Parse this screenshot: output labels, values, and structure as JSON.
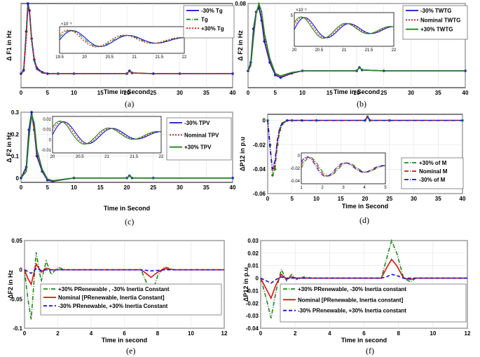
{
  "figure": {
    "captions": [
      "(a)",
      "(b)",
      "(c)",
      "(d)",
      "(e)",
      "(f)"
    ]
  },
  "colors": {
    "blue": "#1010e0",
    "green": "#1a8a1a",
    "red": "#e01010",
    "dashred": "#e01010",
    "darkgreen": "#2c7a2c"
  },
  "chart_data": [
    {
      "id": "a",
      "type": "line",
      "ylabel": "Δ F1 in Hz",
      "xlabel": "Time in Second",
      "xlim": [
        0,
        40
      ],
      "ylim": [
        -0.02,
        0.1
      ],
      "xticks": [
        "0",
        "5",
        "10",
        "15",
        "20",
        "25",
        "30",
        "35",
        "40"
      ],
      "yticks": [],
      "legend": {
        "position": "top-right",
        "entries": [
          "-30% Tg",
          "Tg",
          "+30% Tg"
        ]
      },
      "series": [
        {
          "name": "-30% Tg",
          "color": "#1010e0",
          "style": "solid-marker",
          "x": [
            0,
            0.5,
            1,
            1.3,
            1.6,
            2,
            2.5,
            3,
            4,
            5,
            7,
            10,
            20,
            20.5,
            21,
            25,
            30,
            40
          ],
          "y": [
            0,
            0.005,
            0.06,
            0.1,
            0.09,
            0.05,
            0.02,
            0.008,
            0.002,
            0.0,
            0.0,
            0.0,
            0.0,
            0.004,
            0.001,
            0.0,
            0.0,
            0.0
          ]
        },
        {
          "name": "Tg",
          "color": "#1a8a1a",
          "style": "dashdot",
          "x": [
            0,
            0.5,
            1,
            1.3,
            1.6,
            2,
            2.5,
            3,
            4,
            5,
            7,
            10,
            20,
            20.5,
            21,
            25,
            30,
            40
          ],
          "y": [
            0,
            0.004,
            0.055,
            0.097,
            0.088,
            0.048,
            0.018,
            0.006,
            0.001,
            0.0,
            0.0,
            0.0,
            0.0,
            0.004,
            0.001,
            0.0,
            0.0,
            0.0
          ]
        },
        {
          "name": "+30% Tg",
          "color": "#e01010",
          "style": "dotted",
          "x": [
            0,
            0.5,
            1,
            1.3,
            1.6,
            2,
            2.5,
            3,
            4,
            5,
            7,
            10,
            20,
            20.5,
            21,
            25,
            30,
            40
          ],
          "y": [
            0,
            0.003,
            0.05,
            0.094,
            0.086,
            0.047,
            0.017,
            0.006,
            0.001,
            0.0,
            0.0,
            0.0,
            0.0,
            0.003,
            0.001,
            0.0,
            0.0,
            0.0
          ]
        }
      ],
      "inset": {
        "xticks": [
          "19.5",
          "20",
          "20.5",
          "21",
          "21.5",
          "22"
        ],
        "exponent": "×10⁻³"
      }
    },
    {
      "id": "b",
      "type": "line",
      "ylabel": "Δ F2 in Hz",
      "xlabel": "Time in Second",
      "xlim": [
        0,
        40
      ],
      "ylim": [
        -0.02,
        0.08
      ],
      "xticks": [
        "0",
        "5",
        "10",
        "15",
        "20",
        "25",
        "30",
        "35",
        "40"
      ],
      "yticks": [
        "0.08"
      ],
      "legend": {
        "position": "top-right",
        "entries": [
          "-30% TWTG",
          "Nominal TWTG",
          "+30% TWTG"
        ]
      },
      "series": [
        {
          "name": "-30% TWTG",
          "color": "#1010e0",
          "style": "solid-marker",
          "x": [
            0,
            0.5,
            1,
            1.5,
            2,
            2.5,
            3,
            4,
            5,
            6,
            8,
            10,
            20,
            20.5,
            21,
            25,
            40
          ],
          "y": [
            0,
            0.01,
            0.05,
            0.07,
            0.075,
            0.06,
            0.035,
            0.01,
            -0.005,
            -0.008,
            -0.003,
            0.0,
            0.0,
            0.004,
            0.001,
            0.0,
            0.0
          ]
        },
        {
          "name": "Nominal TWTG",
          "color": "#e01010",
          "style": "dotted",
          "x": [
            0,
            0.5,
            1,
            1.5,
            2,
            2.5,
            3,
            4,
            5,
            6,
            8,
            10,
            20,
            20.5,
            21,
            25,
            40
          ],
          "y": [
            0,
            0.008,
            0.045,
            0.07,
            0.078,
            0.065,
            0.04,
            0.012,
            -0.004,
            -0.007,
            -0.003,
            0.0,
            0.0,
            0.004,
            0.001,
            0.0,
            0.0
          ]
        },
        {
          "name": "+30% TWTG",
          "color": "#1a8a1a",
          "style": "solid",
          "x": [
            0,
            0.5,
            1,
            1.5,
            2,
            2.5,
            3,
            4,
            5,
            6,
            8,
            10,
            20,
            20.5,
            21,
            25,
            40
          ],
          "y": [
            0,
            0.006,
            0.04,
            0.068,
            0.08,
            0.07,
            0.045,
            0.015,
            -0.003,
            -0.006,
            -0.002,
            0.0,
            0.0,
            0.004,
            0.001,
            0.0,
            0.0
          ]
        }
      ],
      "inset": {
        "xticks": [
          "20",
          "20.5",
          "21",
          "21.5",
          "22"
        ],
        "yticks": [
          "5"
        ],
        "exponent": "×10⁻³"
      }
    },
    {
      "id": "c",
      "type": "line",
      "ylabel": "Δ F2 in Hz",
      "xlabel": "Time in Second",
      "xlim": [
        0,
        40
      ],
      "ylim": [
        -0.02,
        0.3
      ],
      "xticks": [
        "0",
        "5",
        "10",
        "15",
        "20",
        "25",
        "30",
        "35",
        "40"
      ],
      "yticks": [
        "0",
        "0.1",
        "0.2",
        "0.3"
      ],
      "legend": {
        "position": "right",
        "entries": [
          "-30% TPV",
          "Nominal TPV",
          "+30% TPV"
        ]
      },
      "series": [
        {
          "name": "-30% TPV",
          "color": "#1010e0",
          "style": "solid-marker",
          "x": [
            0,
            1,
            1.5,
            2,
            2.5,
            3,
            4,
            5,
            6,
            10,
            20,
            20.5,
            21,
            25,
            40
          ],
          "y": [
            0,
            0.05,
            0.22,
            0.3,
            0.22,
            0.1,
            0.03,
            -0.01,
            -0.015,
            0.0,
            0.0,
            0.01,
            0.0,
            0.0,
            0.0
          ]
        },
        {
          "name": "Nominal TPV",
          "color": "#e01010",
          "style": "dotted",
          "x": [
            0,
            1,
            1.5,
            2,
            2.5,
            3,
            4,
            5,
            6,
            10,
            20,
            20.5,
            21,
            25,
            40
          ],
          "y": [
            0,
            0.04,
            0.2,
            0.28,
            0.22,
            0.11,
            0.035,
            -0.008,
            -0.014,
            0.0,
            0.0,
            0.01,
            0.0,
            0.0,
            0.0
          ]
        },
        {
          "name": "+30% TPV",
          "color": "#1a8a1a",
          "style": "solid",
          "x": [
            0,
            1,
            1.5,
            2,
            2.5,
            3,
            4,
            5,
            6,
            10,
            20,
            20.5,
            21,
            25,
            40
          ],
          "y": [
            0,
            0.03,
            0.18,
            0.29,
            0.25,
            0.13,
            0.04,
            -0.005,
            -0.012,
            0.0,
            0.0,
            0.01,
            0.0,
            0.0,
            0.0
          ]
        }
      ],
      "inset": {
        "xticks": [
          "20",
          "20.5",
          "21",
          "21.5",
          "22"
        ],
        "yticks": [
          "0.02",
          "0.01",
          "0",
          "-0.01"
        ]
      }
    },
    {
      "id": "d",
      "type": "line",
      "ylabel": "ΔP12 in p.u",
      "xlabel": "Time in Second",
      "xlim": [
        0,
        40
      ],
      "ylim": [
        -0.06,
        0.005
      ],
      "xticks": [
        "0",
        "5",
        "10",
        "15",
        "20",
        "25",
        "30",
        "35",
        "40"
      ],
      "yticks": [
        "0",
        "-0.02",
        "-0.04",
        "-0.06"
      ],
      "legend": {
        "position": "bottom-right",
        "entries": [
          "+30% of M",
          "Nominal M",
          "-30% of M"
        ]
      },
      "series": [
        {
          "name": "+30% of M",
          "color": "#1a8a1a",
          "style": "dashdot-marker",
          "x": [
            0,
            0.5,
            1,
            1.5,
            2,
            2.5,
            3,
            4,
            5,
            7,
            10,
            20,
            20.5,
            21,
            25,
            40
          ],
          "y": [
            0,
            -0.02,
            -0.045,
            -0.04,
            -0.02,
            -0.008,
            -0.003,
            0.0,
            0.0,
            0.0,
            0.0,
            0.0,
            0.003,
            0.0,
            0.0,
            0.0
          ]
        },
        {
          "name": "Nominal M",
          "color": "#e01010",
          "style": "dashdot",
          "x": [
            0,
            0.5,
            1,
            1.5,
            2,
            2.5,
            3,
            4,
            5,
            7,
            10,
            20,
            20.5,
            21,
            25,
            40
          ],
          "y": [
            0,
            -0.022,
            -0.042,
            -0.036,
            -0.018,
            -0.007,
            -0.002,
            0.0,
            0.0,
            0.0,
            0.0,
            0.0,
            0.003,
            0.0,
            0.0,
            0.0
          ]
        },
        {
          "name": "-30% of M",
          "color": "#1010e0",
          "style": "dashdot",
          "x": [
            0,
            0.5,
            1,
            1.5,
            2,
            2.5,
            3,
            4,
            5,
            7,
            10,
            20,
            20.5,
            21,
            25,
            40
          ],
          "y": [
            0,
            -0.024,
            -0.04,
            -0.033,
            -0.016,
            -0.006,
            -0.002,
            0.0,
            0.0,
            0.0,
            0.0,
            0.0,
            0.003,
            0.0,
            0.0,
            0.0
          ]
        }
      ],
      "inset": {
        "xticks": [
          "1",
          "2",
          "3",
          "4",
          "5"
        ],
        "yticks": [
          "0",
          "-0.02",
          "-0.04"
        ]
      }
    },
    {
      "id": "e",
      "type": "line",
      "ylabel": "ΔF2 in Hz",
      "xlabel": "Time in second",
      "xlim": [
        0,
        12
      ],
      "ylim": [
        -0.1,
        0.05
      ],
      "xticks": [
        "0",
        "2",
        "4",
        "6",
        "8",
        "10",
        "12"
      ],
      "yticks": [
        "0.05",
        "0",
        "-0.05",
        "-0.1"
      ],
      "legend": {
        "position": "bottom",
        "entries": [
          "+30% PRenewable , -30% Inertia Constant",
          "Nominal [PRenewable, Inertia Constant]",
          "-30% PRenewable, +30% Inertia Constant"
        ]
      },
      "series": [
        {
          "name": "+30% PRenewable , -30% Inertia Constant",
          "color": "#1a8a1a",
          "style": "dashdot",
          "x": [
            0,
            0.2,
            0.4,
            0.7,
            1.0,
            1.3,
            1.6,
            2.0,
            2.5,
            3,
            4,
            6,
            7,
            7.3,
            7.6,
            8,
            8.4,
            9,
            10,
            12
          ],
          "y": [
            0,
            -0.05,
            -0.085,
            0.03,
            -0.02,
            0.015,
            -0.008,
            0.004,
            0,
            0,
            0,
            0,
            0,
            -0.02,
            -0.047,
            -0.01,
            0.005,
            0,
            0,
            0
          ]
        },
        {
          "name": "Nominal [PRenewable, Inertia Constant]",
          "color": "#e01010",
          "style": "solid",
          "x": [
            0,
            0.2,
            0.4,
            0.7,
            1.0,
            1.3,
            1.6,
            2.0,
            2.5,
            3,
            4,
            6,
            7,
            7.3,
            7.6,
            8,
            8.4,
            9,
            10,
            12
          ],
          "y": [
            0,
            -0.015,
            -0.025,
            0.01,
            -0.004,
            0.003,
            0,
            0,
            0,
            0,
            0,
            0,
            0,
            -0.006,
            -0.013,
            -0.004,
            0.002,
            0,
            0,
            0
          ]
        },
        {
          "name": "-30% PRenewable, +30% Inertia Constant",
          "color": "#1010e0",
          "style": "dashed",
          "x": [
            0,
            0.2,
            0.4,
            0.7,
            1.0,
            1.3,
            1.6,
            2.0,
            2.5,
            3,
            4,
            6,
            7,
            7.3,
            7.6,
            8,
            8.4,
            9,
            10,
            12
          ],
          "y": [
            0,
            -0.003,
            -0.006,
            0.002,
            -0.001,
            0,
            0,
            0,
            0,
            0,
            0,
            0,
            0,
            -0.001,
            -0.002,
            -0.001,
            0,
            0,
            0,
            0
          ]
        }
      ]
    },
    {
      "id": "f",
      "type": "line",
      "ylabel": "ΔP12 in p.u",
      "xlabel": "Time in second",
      "xlim": [
        0,
        12
      ],
      "ylim": [
        -0.04,
        0.03
      ],
      "xticks": [
        "0",
        "2",
        "4",
        "6",
        "8",
        "10",
        "12"
      ],
      "yticks": [
        "0.03",
        "0.02",
        "0.01",
        "0",
        "-0.01",
        "-0.02",
        "-0.03",
        "-0.04"
      ],
      "legend": {
        "position": "bottom",
        "entries": [
          "+30% PRenewable, -30% Inertia constant",
          "Nominal [PRenewable, Inertia constant]",
          "-30% PRenewable, +30% Inertia constant"
        ]
      },
      "series": [
        {
          "name": "+30% PRenewable, -30% Inertia constant",
          "color": "#1a8a1a",
          "style": "dashdot",
          "x": [
            0,
            0.3,
            0.6,
            0.9,
            1.2,
            1.5,
            1.8,
            2.1,
            2.5,
            3,
            4,
            6,
            7,
            7.3,
            7.6,
            7.9,
            8.3,
            8.7,
            9,
            10,
            12
          ],
          "y": [
            0,
            -0.015,
            -0.032,
            -0.01,
            0.007,
            -0.002,
            0.003,
            -0.001,
            0.001,
            0,
            0,
            0,
            0,
            0.015,
            0.03,
            0.02,
            0.0,
            -0.003,
            0,
            0,
            0
          ]
        },
        {
          "name": "Nominal [PRenewable, Inertia constant]",
          "color": "#e01010",
          "style": "solid",
          "x": [
            0,
            0.3,
            0.6,
            0.9,
            1.2,
            1.5,
            1.8,
            2.1,
            2.5,
            3,
            4,
            6,
            7,
            7.3,
            7.6,
            7.9,
            8.3,
            8.7,
            9,
            10,
            12
          ],
          "y": [
            0,
            -0.008,
            -0.016,
            -0.005,
            0.003,
            -0.001,
            0.001,
            0,
            0,
            0,
            0,
            0,
            0,
            0.008,
            0.015,
            0.01,
            0.0,
            -0.001,
            0,
            0,
            0
          ]
        },
        {
          "name": "-30% PRenewable, +30% Inertia constant",
          "color": "#1010e0",
          "style": "dashed",
          "x": [
            0,
            0.3,
            0.6,
            0.9,
            1.2,
            1.5,
            1.8,
            2.1,
            2.5,
            3,
            4,
            6,
            7,
            7.3,
            7.6,
            7.9,
            8.3,
            8.7,
            9,
            10,
            12
          ],
          "y": [
            0,
            -0.002,
            -0.004,
            -0.001,
            0.001,
            0,
            0,
            0,
            0,
            0,
            0,
            0,
            0,
            0.001,
            0.003,
            0.002,
            0,
            0,
            0,
            0,
            0
          ]
        }
      ]
    }
  ]
}
